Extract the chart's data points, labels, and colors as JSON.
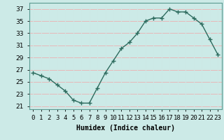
{
  "x": [
    0,
    1,
    2,
    3,
    4,
    5,
    6,
    7,
    8,
    9,
    10,
    11,
    12,
    13,
    14,
    15,
    16,
    17,
    18,
    19,
    20,
    21,
    22,
    23
  ],
  "y": [
    26.5,
    26.0,
    25.5,
    24.5,
    23.5,
    22.0,
    21.5,
    21.5,
    24.0,
    26.5,
    28.5,
    30.5,
    31.5,
    33.0,
    35.0,
    35.5,
    35.5,
    37.0,
    36.5,
    36.5,
    35.5,
    34.5,
    32.0,
    29.5
  ],
  "line_color": "#2d6b5e",
  "marker": "+",
  "marker_size": 4,
  "marker_lw": 1.0,
  "bg_color": "#cceae7",
  "grid_color_major": "#e8b8b8",
  "grid_color_minor": "#cde8e5",
  "xlabel": "Humidex (Indice chaleur)",
  "xlim": [
    -0.5,
    23.5
  ],
  "ylim": [
    20.5,
    38.0
  ],
  "yticks": [
    21,
    23,
    25,
    27,
    29,
    31,
    33,
    35,
    37
  ],
  "xtick_labels": [
    "0",
    "1",
    "2",
    "3",
    "4",
    "5",
    "6",
    "7",
    "8",
    "9",
    "10",
    "11",
    "12",
    "13",
    "14",
    "15",
    "16",
    "17",
    "18",
    "19",
    "20",
    "21",
    "22",
    "23"
  ],
  "xlabel_fontsize": 7,
  "tick_fontsize": 6.5,
  "line_width": 1.0
}
